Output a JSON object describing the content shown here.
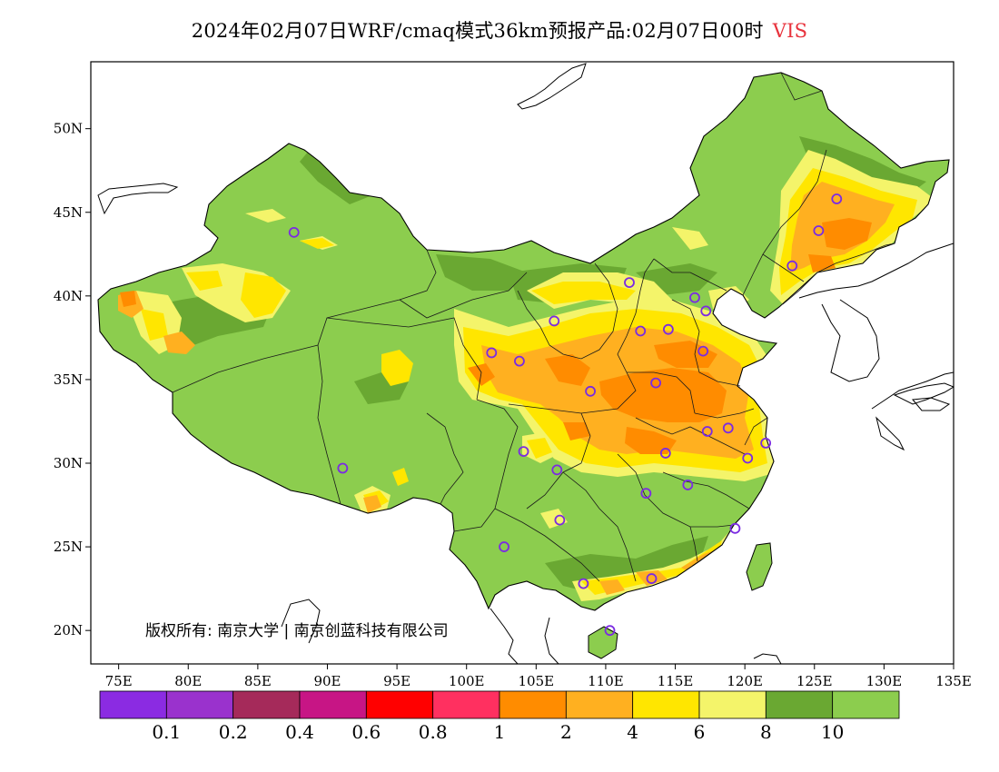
{
  "title": {
    "main": "2024年02月07日WRF/cmaq模式36km预报产品:02月07日00时",
    "variable": "VIS"
  },
  "map": {
    "lon_range": [
      73,
      135
    ],
    "lat_range": [
      18,
      54
    ],
    "lon_ticks": [
      "75E",
      "80E",
      "85E",
      "90E",
      "95E",
      "100E",
      "105E",
      "110E",
      "115E",
      "120E",
      "125E",
      "130E",
      "135E"
    ],
    "lat_ticks": [
      "20N",
      "25N",
      "30N",
      "35N",
      "40N",
      "45N",
      "50N"
    ],
    "field": "visibility (km)",
    "dominant_class": "10"
  },
  "stations": [
    [
      87.6,
      43.8
    ],
    [
      91.1,
      29.7
    ],
    [
      101.8,
      36.6
    ],
    [
      103.8,
      36.1
    ],
    [
      106.3,
      38.5
    ],
    [
      104.1,
      30.7
    ],
    [
      106.5,
      29.6
    ],
    [
      106.7,
      26.6
    ],
    [
      102.7,
      25.0
    ],
    [
      108.4,
      22.8
    ],
    [
      110.3,
      20.0
    ],
    [
      108.9,
      34.3
    ],
    [
      112.5,
      37.9
    ],
    [
      111.7,
      40.8
    ],
    [
      114.5,
      38.0
    ],
    [
      116.4,
      39.9
    ],
    [
      117.2,
      39.1
    ],
    [
      117.0,
      36.7
    ],
    [
      113.6,
      34.8
    ],
    [
      114.3,
      30.6
    ],
    [
      112.9,
      28.2
    ],
    [
      115.9,
      28.7
    ],
    [
      117.3,
      31.9
    ],
    [
      118.8,
      32.1
    ],
    [
      120.2,
      30.3
    ],
    [
      121.5,
      31.2
    ],
    [
      119.3,
      26.1
    ],
    [
      113.3,
      23.1
    ],
    [
      123.4,
      41.8
    ],
    [
      125.3,
      43.9
    ],
    [
      126.6,
      45.8
    ]
  ],
  "copyright": "版权所有: 南京大学 | 南京创蓝科技有限公司",
  "colorbar": {
    "colors": [
      "#8b2be2",
      "#9a32cd",
      "#a52a5a",
      "#c71585",
      "#ff0000",
      "#ff3060",
      "#ff8c00",
      "#ffb020",
      "#ffe600",
      "#f4f46a",
      "#6aa832",
      "#8ccd4e"
    ],
    "labels": [
      "0.1",
      "0.2",
      "0.4",
      "0.6",
      "0.8",
      "1",
      "2",
      "4",
      "6",
      "8",
      "10"
    ]
  },
  "colors": {
    "land": "#8ccd4e",
    "dark_green": "#6aa832",
    "yellow": "#ffe600",
    "light_yellow": "#f4f46a",
    "orange": "#ffb020",
    "dark_orange": "#ff8c00",
    "station": "#7b2be2"
  }
}
